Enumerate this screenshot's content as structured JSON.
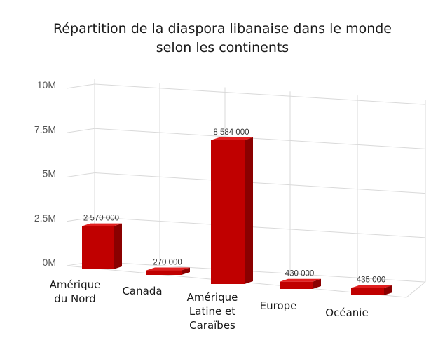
{
  "chart_data": {
    "type": "bar",
    "title": "Répartition de la diaspora libanaise dans le monde\nselon les continents",
    "categories": [
      "Amérique\ndu Nord",
      "Canada",
      "Amérique\nLatine et\nCaraïbes",
      "Europe",
      "Océanie"
    ],
    "values": [
      2570000,
      270000,
      8584000,
      430000,
      435000
    ],
    "data_labels": [
      "2 570 000",
      "270 000",
      "8 584 000",
      "430 000",
      "435 000"
    ],
    "y_ticks": [
      {
        "value": 0,
        "label": "0M"
      },
      {
        "value": 2500000,
        "label": "2.5M"
      },
      {
        "value": 5000000,
        "label": "5M"
      },
      {
        "value": 7500000,
        "label": "7.5M"
      },
      {
        "value": 10000000,
        "label": "10M"
      }
    ],
    "ylim": [
      0,
      10000000
    ],
    "grid": true,
    "legend": "none",
    "style": "3d",
    "colors": {
      "front": "#c00000",
      "side": "#8a0000",
      "top": "#e02020",
      "grid": "#d9d9d9"
    }
  }
}
